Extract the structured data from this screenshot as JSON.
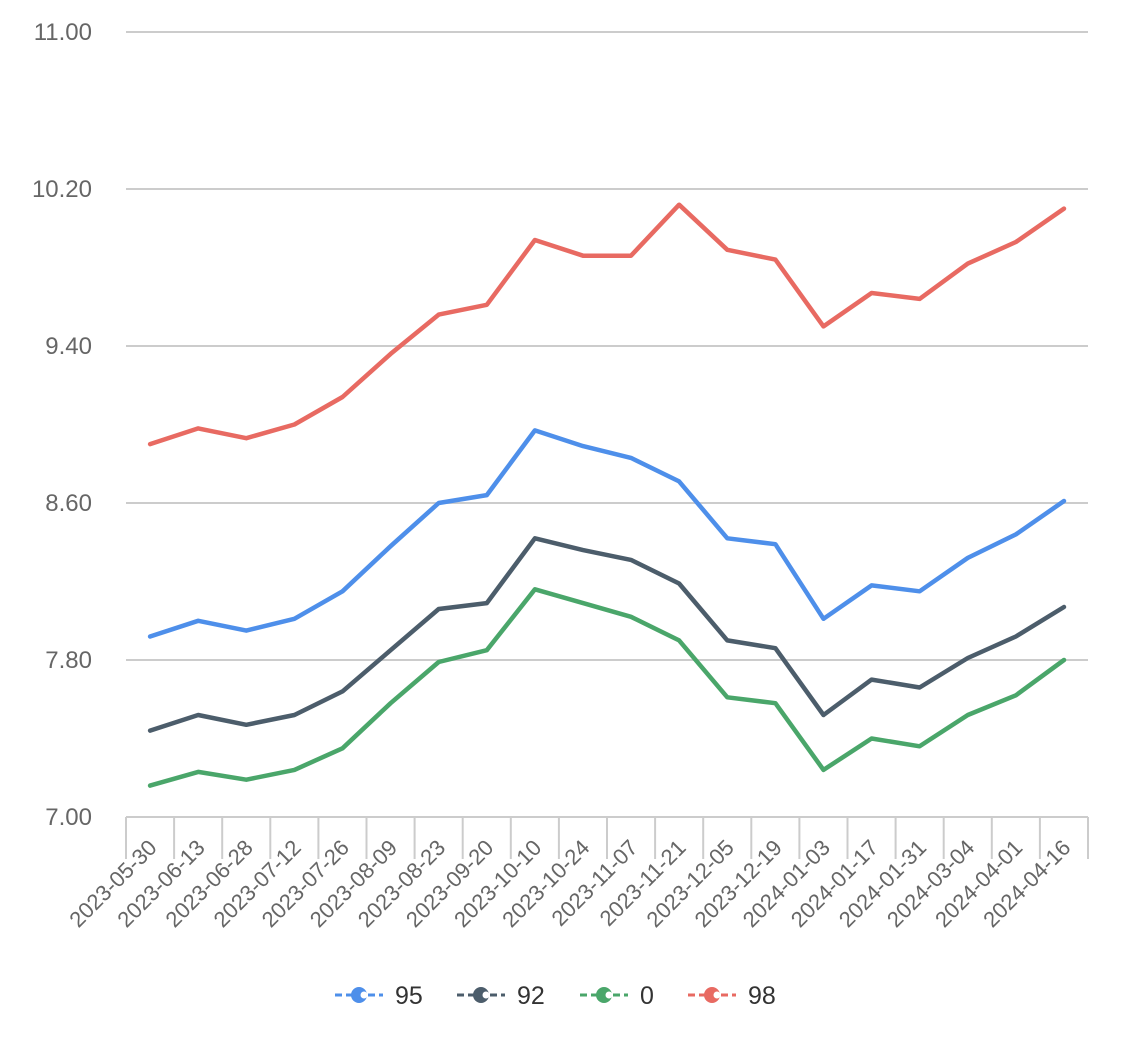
{
  "chart_data": {
    "type": "line",
    "title": "",
    "xlabel": "",
    "ylabel": "",
    "x": [
      "2023-05-30",
      "2023-06-13",
      "2023-06-28",
      "2023-07-12",
      "2023-07-26",
      "2023-08-09",
      "2023-08-23",
      "2023-09-20",
      "2023-10-10",
      "2023-10-24",
      "2023-11-07",
      "2023-11-21",
      "2023-12-05",
      "2023-12-19",
      "2024-01-03",
      "2024-01-17",
      "2024-01-31",
      "2024-03-04",
      "2024-04-01",
      "2024-04-16"
    ],
    "ylim": [
      7.0,
      11.0
    ],
    "yticks": [
      "7.00",
      "7.80",
      "8.60",
      "9.40",
      "10.20",
      "11.00"
    ],
    "grid": true,
    "legend_position": "bottom",
    "series": [
      {
        "name": "95",
        "color": "#4e8fea",
        "values": [
          7.92,
          8.0,
          7.95,
          8.01,
          8.15,
          8.38,
          8.6,
          8.64,
          8.97,
          8.89,
          8.83,
          8.71,
          8.42,
          8.39,
          8.01,
          8.18,
          8.15,
          8.32,
          8.44,
          8.61
        ]
      },
      {
        "name": "92",
        "color": "#4c5d6b",
        "values": [
          7.44,
          7.52,
          7.47,
          7.52,
          7.64,
          7.85,
          8.06,
          8.09,
          8.42,
          8.36,
          8.31,
          8.19,
          7.9,
          7.86,
          7.52,
          7.7,
          7.66,
          7.81,
          7.92,
          8.07
        ]
      },
      {
        "name": "0",
        "color": "#4aa66a",
        "values": [
          7.16,
          7.23,
          7.19,
          7.24,
          7.35,
          7.58,
          7.79,
          7.85,
          8.16,
          8.09,
          8.02,
          7.9,
          7.61,
          7.58,
          7.24,
          7.4,
          7.36,
          7.52,
          7.62,
          7.8
        ]
      },
      {
        "name": "98",
        "color": "#e86a62",
        "values": [
          8.9,
          8.98,
          8.93,
          9.0,
          9.14,
          9.36,
          9.56,
          9.61,
          9.94,
          9.86,
          9.86,
          10.12,
          9.89,
          9.84,
          9.5,
          9.67,
          9.64,
          9.82,
          9.93,
          10.1
        ]
      }
    ]
  }
}
